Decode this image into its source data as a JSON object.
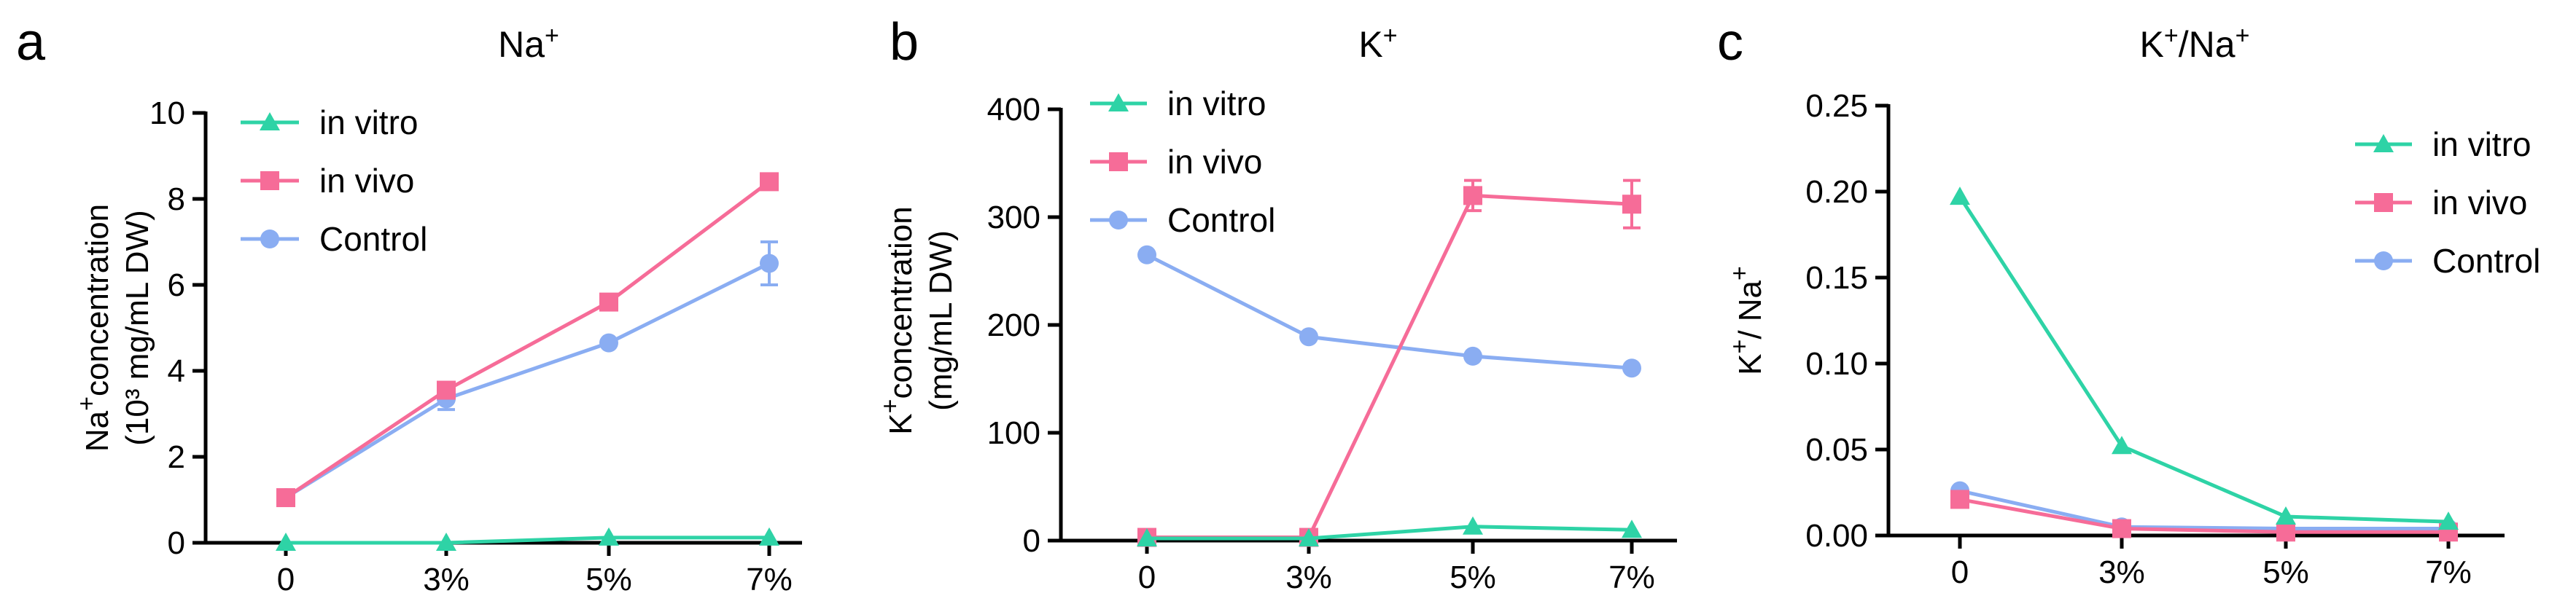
{
  "colors": {
    "in_vitro": "#2ed3a6",
    "in_vivo": "#f66c98",
    "control": "#8aadf2"
  },
  "chart_data": [
    {
      "panel": "a",
      "type": "line",
      "title_base": "Na",
      "title_sup": "+",
      "ylabel_line1_base": "Na",
      "ylabel_line1_sup": "+",
      "ylabel_line1_rest": "concentration",
      "ylabel_line2": "(10³ mg/mL DW)",
      "categories": [
        "0",
        "3%",
        "5%",
        "7%"
      ],
      "ylim": [
        0,
        10
      ],
      "yticks": [
        "0",
        "2",
        "4",
        "6",
        "8",
        "10"
      ],
      "legend_position": "top-left",
      "series": [
        {
          "name": "in vitro",
          "marker": "triangle",
          "values": [
            0.0,
            0.0,
            0.12,
            0.12
          ],
          "errors": [
            0,
            0,
            0,
            0
          ]
        },
        {
          "name": "in vivo",
          "marker": "square",
          "values": [
            1.05,
            3.55,
            5.6,
            8.4
          ],
          "errors": [
            0,
            0,
            0,
            0
          ]
        },
        {
          "name": "Control",
          "marker": "circle",
          "values": [
            1.05,
            3.35,
            4.65,
            6.5
          ],
          "errors": [
            0,
            0.25,
            0,
            0.5
          ]
        }
      ]
    },
    {
      "panel": "b",
      "type": "line",
      "title_base": "K",
      "title_sup": "+",
      "ylabel_line1_base": "K",
      "ylabel_line1_sup": "+",
      "ylabel_line1_rest": "concentration",
      "ylabel_line2": "(mg/mL DW)",
      "categories": [
        "0",
        "3%",
        "5%",
        "7%"
      ],
      "ylim": [
        0,
        400
      ],
      "yticks": [
        "0",
        "100",
        "200",
        "300",
        "400"
      ],
      "legend_position": "top-left",
      "series": [
        {
          "name": "in vitro",
          "marker": "triangle",
          "values": [
            2,
            2,
            13,
            10
          ],
          "errors": [
            0,
            0,
            0,
            0
          ]
        },
        {
          "name": "in vivo",
          "marker": "square",
          "values": [
            3,
            3,
            320,
            312
          ],
          "errors": [
            0,
            0,
            14,
            22
          ]
        },
        {
          "name": "Control",
          "marker": "circle",
          "values": [
            265,
            189,
            171,
            160
          ],
          "errors": [
            0,
            0,
            0,
            0
          ]
        }
      ]
    },
    {
      "panel": "c",
      "type": "line",
      "title_base": "K",
      "title_sup": "+",
      "title_mid": "/Na",
      "title_sup2": "+",
      "ylabel_line1_base": "K",
      "ylabel_line1_sup": "+",
      "ylabel_line1_rest": "/ Na",
      "ylabel_line1_sup2": "+",
      "ylabel_line2": "",
      "categories": [
        "0",
        "3%",
        "5%",
        "7%"
      ],
      "ylim": [
        0,
        0.25
      ],
      "yticks": [
        "0.00",
        "0.05",
        "0.10",
        "0.15",
        "0.20",
        "0.25"
      ],
      "legend_position": "top-right",
      "series": [
        {
          "name": "in vitro",
          "marker": "triangle",
          "values": [
            0.197,
            0.052,
            0.011,
            0.008
          ],
          "errors": [
            0,
            0,
            0,
            0
          ]
        },
        {
          "name": "in vivo",
          "marker": "square",
          "values": [
            0.021,
            0.004,
            0.002,
            0.002
          ],
          "errors": [
            0,
            0,
            0,
            0
          ]
        },
        {
          "name": "Control",
          "marker": "circle",
          "values": [
            0.026,
            0.005,
            0.004,
            0.004
          ],
          "errors": [
            0,
            0,
            0,
            0
          ]
        }
      ]
    }
  ]
}
